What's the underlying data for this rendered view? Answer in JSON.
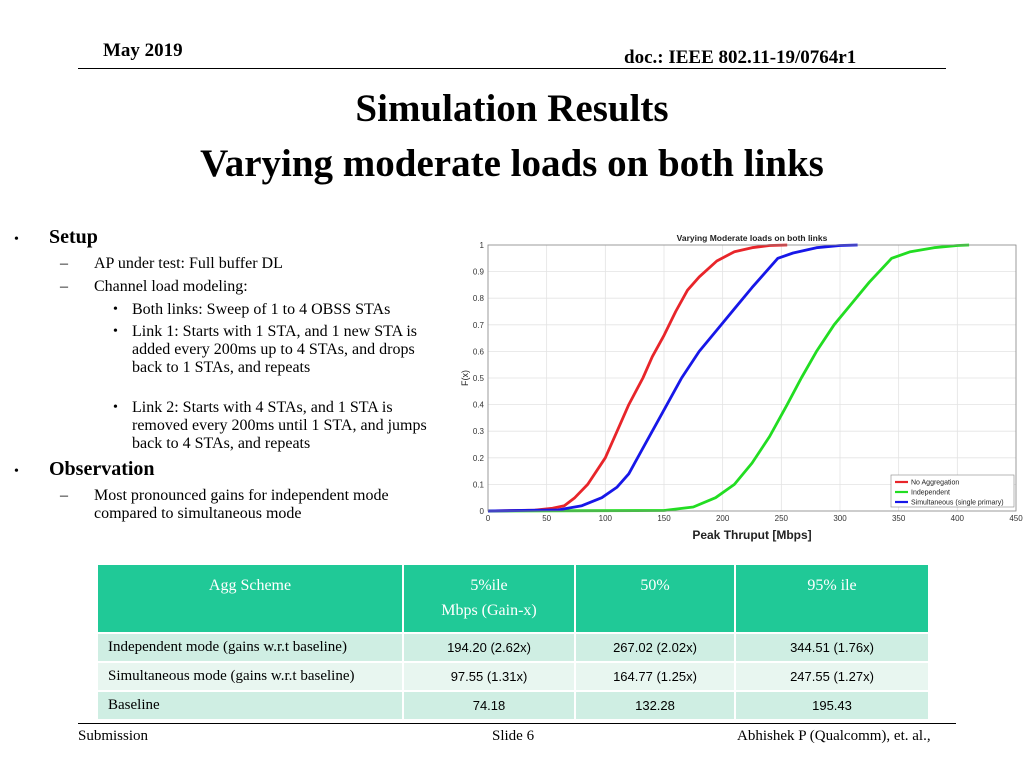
{
  "header": {
    "date": "May 2019",
    "doc_id": "doc.: IEEE 802.11-19/0764r1"
  },
  "title": {
    "line1": "Simulation Results",
    "line2": "Varying moderate loads on both links"
  },
  "bullets": {
    "setup": {
      "heading": "Setup",
      "items": [
        {
          "text": "AP under test: Full buffer DL"
        },
        {
          "text": "Channel load modeling:",
          "sub": [
            "Both links: Sweep of 1 to 4 OBSS STAs",
            "Link 1: Starts with 1 STA, and 1 new STA is added every 200ms up to 4 STAs, and drops back to 1 STAs, and repeats",
            "Link 2: Starts with 4 STAs, and 1 STA is removed every 200ms until 1 STA, and jumps back to 4 STAs, and repeats"
          ]
        }
      ]
    },
    "observation": {
      "heading": "Observation",
      "items": [
        {
          "text": "Most pronounced gains for independent mode compared to simultaneous mode"
        }
      ]
    }
  },
  "chart_data": {
    "type": "line",
    "title": "Varying Moderate loads on both links",
    "xlabel": "Peak Thruput [Mbps]",
    "ylabel": "F(x)",
    "xlim": [
      0,
      450
    ],
    "ylim": [
      0,
      1
    ],
    "xticks": [
      0,
      50,
      100,
      150,
      200,
      250,
      300,
      350,
      400,
      450
    ],
    "yticks": [
      0,
      0.1,
      0.2,
      0.3,
      0.4,
      0.5,
      0.6,
      0.7,
      0.8,
      0.9,
      1
    ],
    "grid": true,
    "legend_position": "bottom-right",
    "series": [
      {
        "name": "No Aggregation",
        "color": "#e8252a",
        "x": [
          0,
          40,
          55,
          65,
          74,
          85,
          100,
          110,
          120,
          132,
          140,
          150,
          160,
          170,
          180,
          195,
          210,
          225,
          240,
          255
        ],
        "y": [
          0,
          0.003,
          0.01,
          0.02,
          0.05,
          0.1,
          0.2,
          0.3,
          0.4,
          0.5,
          0.58,
          0.66,
          0.75,
          0.83,
          0.88,
          0.94,
          0.975,
          0.99,
          0.998,
          1
        ]
      },
      {
        "name": "Independent",
        "color": "#22dd22",
        "x": [
          0,
          150,
          175,
          194,
          210,
          225,
          240,
          255,
          267,
          280,
          295,
          310,
          325,
          344,
          360,
          380,
          400,
          410
        ],
        "y": [
          0,
          0.002,
          0.015,
          0.05,
          0.1,
          0.18,
          0.28,
          0.4,
          0.5,
          0.6,
          0.7,
          0.78,
          0.86,
          0.95,
          0.975,
          0.99,
          0.998,
          1
        ]
      },
      {
        "name": "Simultaneous (single primary)",
        "color": "#1717e8",
        "x": [
          0,
          60,
          80,
          97,
          110,
          120,
          135,
          150,
          165,
          180,
          195,
          210,
          225,
          247,
          260,
          280,
          300,
          315
        ],
        "y": [
          0,
          0.004,
          0.02,
          0.05,
          0.09,
          0.14,
          0.26,
          0.38,
          0.5,
          0.6,
          0.68,
          0.76,
          0.84,
          0.95,
          0.97,
          0.99,
          0.998,
          1
        ]
      }
    ]
  },
  "table": {
    "headers": [
      {
        "line1": "Agg Scheme",
        "line2": ""
      },
      {
        "line1": "5%ile",
        "line2": "Mbps (Gain-x)"
      },
      {
        "line1": "50%",
        "line2": ""
      },
      {
        "line1": "95% ile",
        "line2": ""
      }
    ],
    "rows": [
      [
        "Independent mode (gains w.r.t baseline)",
        "194.20 (2.62x)",
        "267.02 (2.02x)",
        "344.51 (1.76x)"
      ],
      [
        "Simultaneous mode (gains w.r.t baseline)",
        "97.55 (1.31x)",
        "164.77 (1.25x)",
        "247.55  (1.27x)"
      ],
      [
        "Baseline",
        "74.18",
        "132.28",
        "195.43"
      ]
    ]
  },
  "footer": {
    "left": "Submission",
    "center": "Slide 6",
    "right": "Abhishek P (Qualcomm), et. al.,"
  },
  "colors": {
    "table_header": "#20c997",
    "table_row_dark": "#cfeee3",
    "table_row_light": "#e8f6f0"
  }
}
